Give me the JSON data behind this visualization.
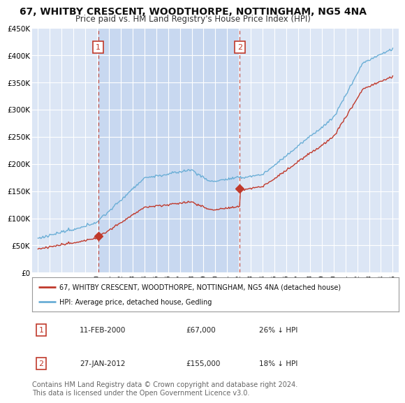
{
  "title": "67, WHITBY CRESCENT, WOODTHORPE, NOTTINGHAM, NG5 4NA",
  "subtitle": "Price paid vs. HM Land Registry's House Price Index (HPI)",
  "title_fontsize": 10,
  "subtitle_fontsize": 8.5,
  "background_color": "#ffffff",
  "plot_bg_color": "#dce6f5",
  "highlight_bg_color": "#c8d8f0",
  "grid_color": "#ffffff",
  "red_line_color": "#c0392b",
  "blue_line_color": "#6aaed6",
  "sale1_year": 2000.1,
  "sale1_price": 67000,
  "sale2_year": 2012.07,
  "sale2_price": 155000,
  "ylim_min": 0,
  "ylim_max": 450000,
  "yticks": [
    0,
    50000,
    100000,
    150000,
    200000,
    250000,
    300000,
    350000,
    400000,
    450000
  ],
  "xlim_min": 1994.5,
  "xlim_max": 2025.5,
  "legend_red_label": "67, WHITBY CRESCENT, WOODTHORPE, NOTTINGHAM, NG5 4NA (detached house)",
  "legend_blue_label": "HPI: Average price, detached house, Gedling",
  "transaction1_num": "1",
  "transaction1_date": "11-FEB-2000",
  "transaction1_price": "£67,000",
  "transaction1_hpi": "26% ↓ HPI",
  "transaction2_num": "2",
  "transaction2_date": "27-JAN-2012",
  "transaction2_price": "£155,000",
  "transaction2_hpi": "18% ↓ HPI",
  "footer": "Contains HM Land Registry data © Crown copyright and database right 2024.\nThis data is licensed under the Open Government Licence v3.0.",
  "footer_fontsize": 7.0
}
